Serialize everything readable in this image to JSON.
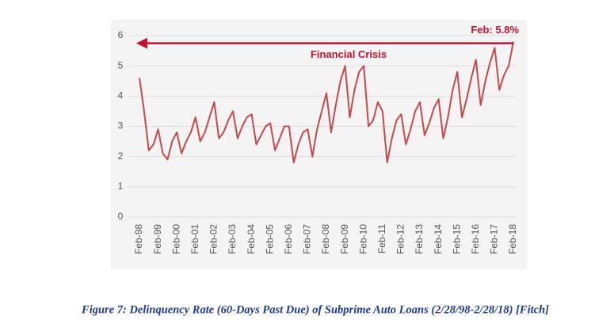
{
  "chart_data": {
    "type": "line",
    "caption": "Figure 7: Delinquency Rate (60-Days Past Due) of Subprime Auto Loans (2/28/98-2/28/18) [Fitch]",
    "annotations": [
      {
        "text": "Feb: 5.8%"
      },
      {
        "text": "Financial Crisis"
      }
    ],
    "color": "#c9474b",
    "annotation_color": "#c8102e",
    "grid": true,
    "ylim": [
      0,
      6
    ],
    "yticks": [
      0,
      1,
      2,
      3,
      4,
      5,
      6
    ],
    "categories": [
      "Feb-98",
      null,
      null,
      null,
      "Feb-99",
      null,
      null,
      null,
      "Feb-00",
      null,
      null,
      null,
      "Feb-01",
      null,
      null,
      null,
      "Feb-02",
      null,
      null,
      null,
      "Feb-03",
      null,
      null,
      null,
      "Feb-04",
      null,
      null,
      null,
      "Feb-05",
      null,
      null,
      null,
      "Feb-06",
      null,
      null,
      null,
      "Feb-07",
      null,
      null,
      null,
      "Feb-08",
      null,
      null,
      null,
      "Feb-09",
      null,
      null,
      null,
      "Feb-10",
      null,
      null,
      null,
      "Feb-11",
      null,
      null,
      null,
      "Feb-12",
      null,
      null,
      null,
      "Feb-13",
      null,
      null,
      null,
      "Feb-14",
      null,
      null,
      null,
      "Feb-15",
      null,
      null,
      null,
      "Feb-16",
      null,
      null,
      null,
      "Feb-17",
      null,
      null,
      null,
      "Feb-18"
    ],
    "values": [
      4.6,
      3.5,
      2.2,
      2.4,
      2.9,
      2.1,
      1.9,
      2.5,
      2.8,
      2.1,
      2.5,
      2.8,
      3.3,
      2.5,
      2.8,
      3.3,
      3.8,
      2.6,
      2.8,
      3.2,
      3.5,
      2.6,
      3.0,
      3.3,
      3.4,
      2.4,
      2.7,
      3.0,
      3.1,
      2.2,
      2.6,
      3.0,
      3.0,
      1.8,
      2.4,
      2.8,
      2.9,
      2.0,
      2.9,
      3.5,
      4.1,
      2.8,
      3.7,
      4.5,
      5.0,
      3.3,
      4.2,
      4.8,
      5.0,
      3.0,
      3.2,
      3.8,
      3.5,
      1.8,
      2.6,
      3.2,
      3.4,
      2.4,
      2.9,
      3.5,
      3.8,
      2.7,
      3.1,
      3.6,
      3.9,
      2.6,
      3.3,
      4.2,
      4.8,
      3.3,
      3.9,
      4.6,
      5.2,
      3.7,
      4.5,
      5.1,
      5.6,
      4.2,
      4.7,
      5.0,
      5.8
    ]
  }
}
